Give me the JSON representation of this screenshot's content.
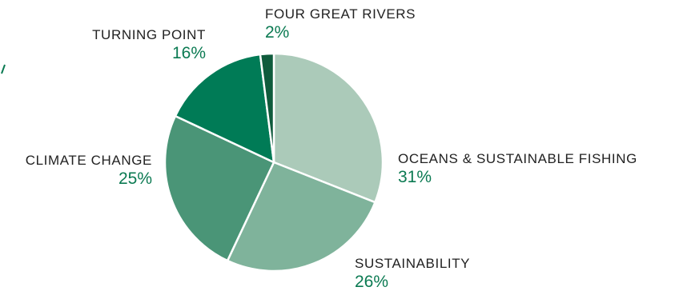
{
  "chart_data": {
    "type": "pie",
    "start_at": "12 o'clock",
    "direction": "clockwise",
    "legend": "none",
    "slices": [
      {
        "label": "OCEANS & SUSTAINABLE FISHING",
        "value": 31,
        "value_label": "31%",
        "color": "#abcab9"
      },
      {
        "label": "SUSTAINABILITY",
        "value": 26,
        "value_label": "26%",
        "color": "#7fb39b"
      },
      {
        "label": "CLIMATE CHANGE",
        "value": 25,
        "value_label": "25%",
        "color": "#4a9577"
      },
      {
        "label": "TURNING POINT",
        "value": 16,
        "value_label": "16%",
        "color": "#007b56"
      },
      {
        "label": "FOUR GREAT RIVERS",
        "value": 2,
        "value_label": "2%",
        "color": "#0f5b3c"
      }
    ]
  },
  "colors": {
    "category_text": "#222222",
    "percent_text": "#0b7a52",
    "slice_border": "#ffffff"
  }
}
